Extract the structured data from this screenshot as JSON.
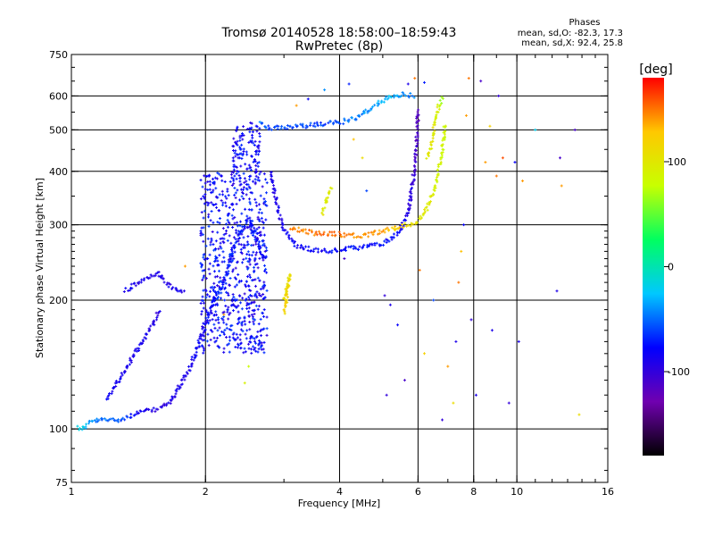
{
  "chart_data": {
    "type": "scatter",
    "title": "Tromsø 20140528 18:58:00–18:59:43",
    "subtitle": "RwPretec (8p)",
    "xlabel": "Frequency [MHz]",
    "ylabel": "Stationary phase Virtual Height [km]",
    "x_scale": "log",
    "y_scale": "log",
    "xlim": [
      1,
      16
    ],
    "ylim": [
      75,
      750
    ],
    "x_ticks": [
      {
        "value": 1,
        "label": "1"
      },
      {
        "value": 2,
        "label": "2"
      },
      {
        "value": 4,
        "label": "4"
      },
      {
        "value": 6,
        "label": "6"
      },
      {
        "value": 8,
        "label": "8"
      },
      {
        "value": 10,
        "label": "10"
      },
      {
        "value": 16,
        "label": "16"
      }
    ],
    "y_ticks": [
      {
        "value": 75,
        "label": "75"
      },
      {
        "value": 100,
        "label": "100"
      },
      {
        "value": 200,
        "label": "200"
      },
      {
        "value": 300,
        "label": "300"
      },
      {
        "value": 400,
        "label": "400"
      },
      {
        "value": 500,
        "label": "500"
      },
      {
        "value": 600,
        "label": "600"
      },
      {
        "value": 750,
        "label": "750"
      }
    ],
    "grid_x": [
      2,
      4,
      6,
      8,
      10
    ],
    "grid_y": [
      100,
      200,
      300,
      400,
      500,
      600
    ],
    "legend": {
      "heading": "Phases",
      "line1": "mean, sd,O: -82.3, 17.3",
      "line2": "mean, sd,X:  92.4, 25.8"
    },
    "colorbar": {
      "label": "[deg]",
      "min": -180,
      "max": 180,
      "ticks": [
        {
          "value": 100,
          "label": "100"
        },
        {
          "value": 0,
          "label": "0"
        },
        {
          "value": -100,
          "label": "-100"
        }
      ],
      "colormap": [
        "#000000",
        "#7000b0",
        "#0000ff",
        "#00c8ff",
        "#00ff60",
        "#c8ff00",
        "#ffc800",
        "#ff0000"
      ]
    },
    "series": [
      {
        "trace": [
          {
            "x": 1.03,
            "y": 101,
            "phase": -20
          },
          {
            "x": 1.06,
            "y": 100,
            "phase": -20
          },
          {
            "x": 1.1,
            "y": 104,
            "phase": -40
          },
          {
            "x": 1.18,
            "y": 105,
            "phase": -50
          },
          {
            "x": 1.26,
            "y": 105,
            "phase": -50
          },
          {
            "x": 1.32,
            "y": 106,
            "phase": -60
          },
          {
            "x": 1.38,
            "y": 108,
            "phase": -80
          },
          {
            "x": 1.44,
            "y": 110,
            "phase": -90
          },
          {
            "x": 1.5,
            "y": 110,
            "phase": -95
          },
          {
            "x": 1.58,
            "y": 112,
            "phase": -95
          },
          {
            "x": 1.66,
            "y": 115,
            "phase": -95
          },
          {
            "x": 1.74,
            "y": 125,
            "phase": -90
          },
          {
            "x": 1.82,
            "y": 135,
            "phase": -90
          },
          {
            "x": 1.9,
            "y": 150,
            "phase": -85
          },
          {
            "x": 1.98,
            "y": 170,
            "phase": -80
          },
          {
            "x": 2.05,
            "y": 190,
            "phase": -80
          },
          {
            "x": 2.12,
            "y": 210,
            "phase": -75
          }
        ]
      },
      {
        "trace": [
          {
            "x": 1.2,
            "y": 118,
            "phase": -80
          },
          {
            "x": 1.28,
            "y": 130,
            "phase": -85
          },
          {
            "x": 1.36,
            "y": 145,
            "phase": -90
          },
          {
            "x": 1.44,
            "y": 160,
            "phase": -90
          },
          {
            "x": 1.52,
            "y": 175,
            "phase": -95
          },
          {
            "x": 1.58,
            "y": 190,
            "phase": -95
          }
        ]
      },
      {
        "trace": [
          {
            "x": 1.32,
            "y": 210,
            "phase": -90
          },
          {
            "x": 1.4,
            "y": 218,
            "phase": -90
          },
          {
            "x": 1.48,
            "y": 225,
            "phase": -85
          },
          {
            "x": 1.56,
            "y": 232,
            "phase": -85
          },
          {
            "x": 1.64,
            "y": 218,
            "phase": -90
          },
          {
            "x": 1.72,
            "y": 212,
            "phase": -90
          },
          {
            "x": 1.8,
            "y": 208,
            "phase": -95
          }
        ]
      },
      {
        "trace": [
          {
            "x": 2.1,
            "y": 200,
            "phase": -70
          },
          {
            "x": 2.2,
            "y": 220,
            "phase": -70
          },
          {
            "x": 2.3,
            "y": 260,
            "phase": -75
          },
          {
            "x": 2.4,
            "y": 290,
            "phase": -70
          },
          {
            "x": 2.5,
            "y": 310,
            "phase": -70
          },
          {
            "x": 2.6,
            "y": 280,
            "phase": -75
          },
          {
            "x": 2.7,
            "y": 250,
            "phase": -80
          }
        ]
      },
      {
        "trace": [
          {
            "x": 2.65,
            "y": 520,
            "phase": -50
          },
          {
            "x": 2.8,
            "y": 505,
            "phase": -60
          },
          {
            "x": 3.0,
            "y": 505,
            "phase": -60
          },
          {
            "x": 3.3,
            "y": 510,
            "phase": -60
          },
          {
            "x": 3.6,
            "y": 515,
            "phase": -60
          },
          {
            "x": 4.0,
            "y": 520,
            "phase": -55
          },
          {
            "x": 4.4,
            "y": 535,
            "phase": -45
          },
          {
            "x": 4.8,
            "y": 570,
            "phase": -35
          },
          {
            "x": 5.2,
            "y": 600,
            "phase": -30
          },
          {
            "x": 5.6,
            "y": 605,
            "phase": -40
          },
          {
            "x": 5.9,
            "y": 600,
            "phase": -50
          }
        ]
      },
      {
        "trace": [
          {
            "x": 2.8,
            "y": 400,
            "phase": -90
          },
          {
            "x": 2.9,
            "y": 330,
            "phase": -90
          },
          {
            "x": 3.0,
            "y": 290,
            "phase": -85
          },
          {
            "x": 3.2,
            "y": 268,
            "phase": -80
          },
          {
            "x": 3.6,
            "y": 260,
            "phase": -80
          },
          {
            "x": 4.0,
            "y": 262,
            "phase": -75
          },
          {
            "x": 4.5,
            "y": 266,
            "phase": -75
          },
          {
            "x": 5.0,
            "y": 272,
            "phase": -75
          },
          {
            "x": 5.4,
            "y": 285,
            "phase": -80
          },
          {
            "x": 5.7,
            "y": 320,
            "phase": -90
          },
          {
            "x": 5.85,
            "y": 380,
            "phase": -100
          },
          {
            "x": 5.95,
            "y": 450,
            "phase": -110
          },
          {
            "x": 6.0,
            "y": 560,
            "phase": -115
          }
        ]
      },
      {
        "trace": [
          {
            "x": 3.1,
            "y": 295,
            "phase": 140
          },
          {
            "x": 3.5,
            "y": 287,
            "phase": 150
          },
          {
            "x": 4.0,
            "y": 285,
            "phase": 150
          },
          {
            "x": 4.5,
            "y": 282,
            "phase": 145
          },
          {
            "x": 5.0,
            "y": 290,
            "phase": 135
          },
          {
            "x": 5.5,
            "y": 298,
            "phase": 120
          },
          {
            "x": 6.0,
            "y": 305,
            "phase": 100
          },
          {
            "x": 6.3,
            "y": 330,
            "phase": 95
          },
          {
            "x": 6.6,
            "y": 380,
            "phase": 90
          },
          {
            "x": 6.8,
            "y": 450,
            "phase": 85
          },
          {
            "x": 6.9,
            "y": 520,
            "phase": 80
          }
        ]
      },
      {
        "trace": [
          {
            "x": 6.3,
            "y": 430,
            "phase": 100
          },
          {
            "x": 6.45,
            "y": 470,
            "phase": 100
          },
          {
            "x": 6.55,
            "y": 520,
            "phase": 95
          },
          {
            "x": 6.65,
            "y": 560,
            "phase": 90
          },
          {
            "x": 6.8,
            "y": 600,
            "phase": 60
          }
        ]
      },
      {
        "trace": [
          {
            "x": 3.65,
            "y": 320,
            "phase": 100
          },
          {
            "x": 3.75,
            "y": 350,
            "phase": 95
          },
          {
            "x": 3.85,
            "y": 370,
            "phase": 90
          }
        ]
      },
      {
        "trace": [
          {
            "x": 3.0,
            "y": 200,
            "phase": 110
          },
          {
            "x": 3.05,
            "y": 215,
            "phase": 105
          },
          {
            "x": 3.1,
            "y": 230,
            "phase": 110
          },
          {
            "x": 3.0,
            "y": 185,
            "phase": 120
          }
        ]
      }
    ],
    "scatter_points": [
      {
        "x": 5.05,
        "y": 205,
        "phase": -100
      },
      {
        "x": 5.2,
        "y": 195,
        "phase": -90
      },
      {
        "x": 5.4,
        "y": 175,
        "phase": -80
      },
      {
        "x": 5.1,
        "y": 120,
        "phase": -100
      },
      {
        "x": 5.6,
        "y": 130,
        "phase": -110
      },
      {
        "x": 6.05,
        "y": 235,
        "phase": 150
      },
      {
        "x": 6.2,
        "y": 150,
        "phase": 120
      },
      {
        "x": 6.5,
        "y": 200,
        "phase": -60
      },
      {
        "x": 6.8,
        "y": 105,
        "phase": -100
      },
      {
        "x": 7.0,
        "y": 140,
        "phase": 140
      },
      {
        "x": 7.2,
        "y": 115,
        "phase": 110
      },
      {
        "x": 7.3,
        "y": 160,
        "phase": -90
      },
      {
        "x": 7.4,
        "y": 220,
        "phase": 150
      },
      {
        "x": 7.5,
        "y": 260,
        "phase": 130
      },
      {
        "x": 7.6,
        "y": 300,
        "phase": -80
      },
      {
        "x": 7.7,
        "y": 540,
        "phase": 140
      },
      {
        "x": 7.8,
        "y": 660,
        "phase": 150
      },
      {
        "x": 7.9,
        "y": 180,
        "phase": -100
      },
      {
        "x": 8.1,
        "y": 120,
        "phase": -90
      },
      {
        "x": 8.3,
        "y": 650,
        "phase": -110
      },
      {
        "x": 8.5,
        "y": 420,
        "phase": 140
      },
      {
        "x": 8.7,
        "y": 510,
        "phase": 120
      },
      {
        "x": 8.8,
        "y": 170,
        "phase": -90
      },
      {
        "x": 9.0,
        "y": 390,
        "phase": 150
      },
      {
        "x": 9.1,
        "y": 600,
        "phase": -100
      },
      {
        "x": 9.3,
        "y": 430,
        "phase": 160
      },
      {
        "x": 9.6,
        "y": 115,
        "phase": -100
      },
      {
        "x": 9.9,
        "y": 420,
        "phase": -80
      },
      {
        "x": 10.3,
        "y": 380,
        "phase": 140
      },
      {
        "x": 10.1,
        "y": 160,
        "phase": -90
      },
      {
        "x": 12.3,
        "y": 210,
        "phase": -90
      },
      {
        "x": 12.5,
        "y": 430,
        "phase": -110
      },
      {
        "x": 12.6,
        "y": 370,
        "phase": 140
      },
      {
        "x": 13.5,
        "y": 500,
        "phase": -110
      },
      {
        "x": 13.8,
        "y": 108,
        "phase": 110
      },
      {
        "x": 11.0,
        "y": 500,
        "phase": -20
      },
      {
        "x": 3.4,
        "y": 590,
        "phase": -80
      },
      {
        "x": 3.2,
        "y": 570,
        "phase": 140
      },
      {
        "x": 5.7,
        "y": 640,
        "phase": -90
      },
      {
        "x": 6.2,
        "y": 645,
        "phase": -70
      },
      {
        "x": 5.9,
        "y": 660,
        "phase": 150
      },
      {
        "x": 3.7,
        "y": 620,
        "phase": -40
      },
      {
        "x": 4.5,
        "y": 430,
        "phase": 110
      },
      {
        "x": 4.6,
        "y": 360,
        "phase": -60
      },
      {
        "x": 4.3,
        "y": 475,
        "phase": 130
      },
      {
        "x": 2.5,
        "y": 140,
        "phase": 80
      },
      {
        "x": 2.45,
        "y": 128,
        "phase": 90
      },
      {
        "x": 2.2,
        "y": 185,
        "phase": 140
      },
      {
        "x": 1.8,
        "y": 240,
        "phase": 140
      },
      {
        "x": 4.2,
        "y": 640,
        "phase": -70
      },
      {
        "x": 4.1,
        "y": 250,
        "phase": -110
      }
    ]
  }
}
